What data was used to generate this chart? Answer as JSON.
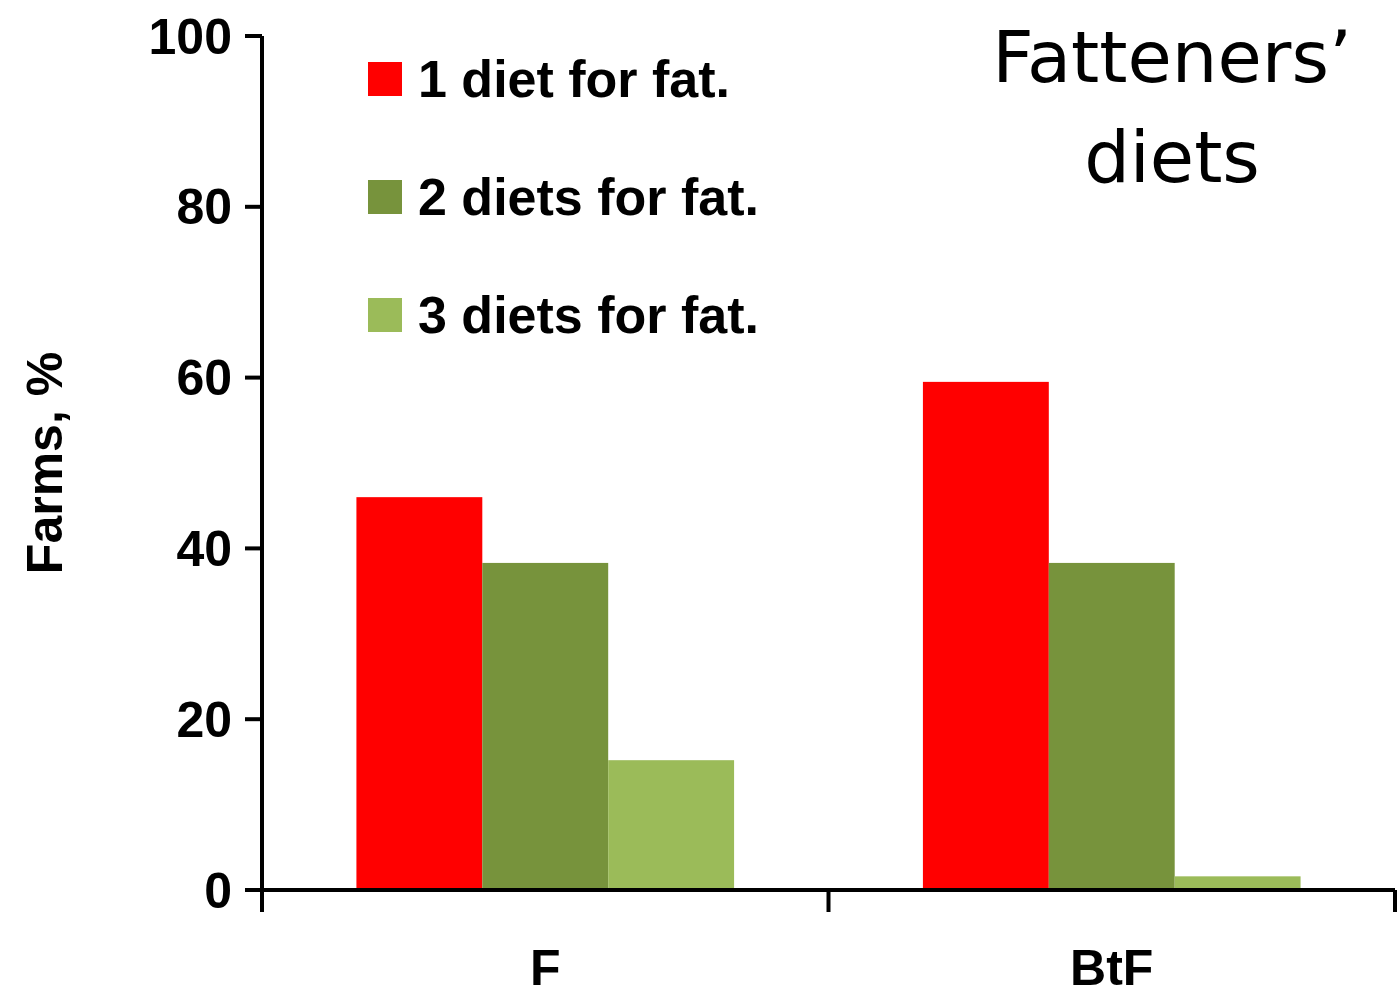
{
  "chart_data": {
    "type": "bar",
    "title": "Fatteners’ diets",
    "ylabel": "Farms, %",
    "categories": [
      "F",
      "BtF"
    ],
    "series": [
      {
        "name": "1 diet for fat.",
        "color": "#ff0000",
        "values": [
          46,
          59.5
        ]
      },
      {
        "name": "2 diets for fat.",
        "color": "#77933c",
        "values": [
          38.3,
          38.3
        ]
      },
      {
        "name": "3 diets for fat.",
        "color": "#9bbb59",
        "values": [
          15.2,
          1.6
        ]
      }
    ],
    "ylim": [
      0,
      100
    ],
    "yticks": [
      0,
      20,
      40,
      60,
      80,
      100
    ],
    "legend": "top left",
    "grid": false
  }
}
